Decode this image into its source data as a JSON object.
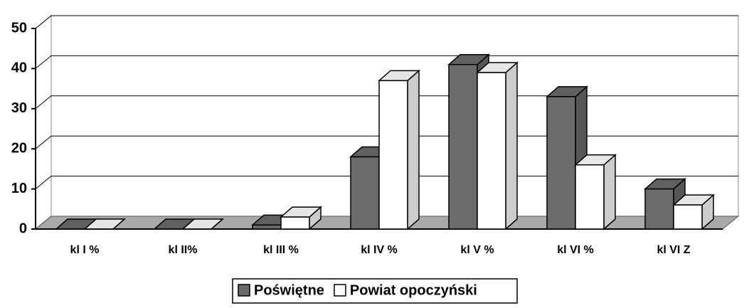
{
  "chart_data": {
    "type": "bar3d",
    "categories": [
      "kl I %",
      "kl II%",
      "kl III %",
      "kl IV %",
      "kl V %",
      "kl VI %",
      "kl VI Z"
    ],
    "series": [
      {
        "name": "Poświętne",
        "color": "#6b6b6b",
        "values": [
          0,
          0,
          1,
          18,
          41,
          33,
          10
        ]
      },
      {
        "name": "Powiat opoczyński",
        "color": "#ffffff",
        "values": [
          0,
          0,
          3,
          37,
          39,
          16,
          6
        ]
      }
    ],
    "ylim": [
      0,
      50
    ],
    "yticks": [
      0,
      10,
      20,
      30,
      40,
      50
    ],
    "grid": true,
    "legend": "bottom"
  }
}
